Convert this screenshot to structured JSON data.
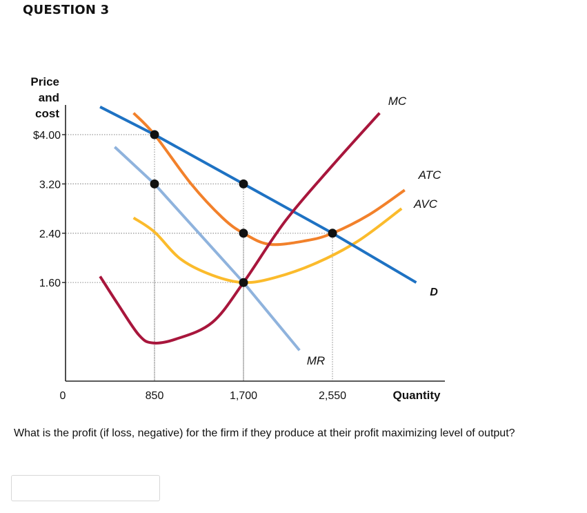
{
  "question": {
    "title": "QUESTION 3",
    "prompt": "What is the profit (if loss, negative) for the firm if they produce at their profit maximizing level of output?",
    "answer_value": "",
    "answer_placeholder": ""
  },
  "chart_data": {
    "type": "line",
    "ylabel_lines": [
      "Price",
      "and",
      "cost"
    ],
    "xlabel": "Quantity",
    "y_ticks": [
      {
        "value": 4.0,
        "label": "$4.00"
      },
      {
        "value": 3.2,
        "label": "3.20"
      },
      {
        "value": 2.4,
        "label": "2.40"
      },
      {
        "value": 1.6,
        "label": "1.60"
      }
    ],
    "x_ticks": [
      {
        "value": 0,
        "label": "0"
      },
      {
        "value": 850,
        "label": "850"
      },
      {
        "value": 1700,
        "label": "1,700"
      },
      {
        "value": 2550,
        "label": "2,550"
      }
    ],
    "xlim": [
      0,
      3500
    ],
    "ylim": [
      0,
      4.6
    ],
    "series": [
      {
        "name": "D",
        "color": "#1e72c3",
        "points": [
          [
            330,
            4.45
          ],
          [
            850,
            4.0
          ],
          [
            1700,
            3.2
          ],
          [
            2550,
            2.4
          ],
          [
            3350,
            1.6
          ]
        ]
      },
      {
        "name": "MR",
        "color": "#8fb3dd",
        "points": [
          [
            470,
            3.8
          ],
          [
            850,
            3.2
          ],
          [
            1700,
            1.6
          ],
          [
            2235,
            0.5
          ]
        ]
      },
      {
        "name": "MC",
        "color": "#a8163c",
        "points": [
          [
            330,
            1.7
          ],
          [
            500,
            1.25
          ],
          [
            700,
            0.75
          ],
          [
            830,
            0.62
          ],
          [
            1050,
            0.68
          ],
          [
            1400,
            0.95
          ],
          [
            1700,
            1.6
          ],
          [
            2100,
            2.6
          ],
          [
            2550,
            3.5
          ],
          [
            3000,
            4.35
          ]
        ]
      },
      {
        "name": "ATC",
        "color": "#f2812b",
        "points": [
          [
            650,
            4.35
          ],
          [
            850,
            4.0
          ],
          [
            1200,
            3.2
          ],
          [
            1500,
            2.65
          ],
          [
            1700,
            2.4
          ],
          [
            1950,
            2.22
          ],
          [
            2300,
            2.28
          ],
          [
            2550,
            2.4
          ],
          [
            2900,
            2.7
          ],
          [
            3240,
            3.1
          ]
        ]
      },
      {
        "name": "AVC",
        "color": "#fbbb2c",
        "points": [
          [
            650,
            2.65
          ],
          [
            850,
            2.42
          ],
          [
            1100,
            1.98
          ],
          [
            1400,
            1.72
          ],
          [
            1700,
            1.6
          ],
          [
            2000,
            1.68
          ],
          [
            2400,
            1.92
          ],
          [
            2800,
            2.28
          ],
          [
            3210,
            2.8
          ]
        ]
      }
    ],
    "guides": [
      {
        "x": 850,
        "y": 4.0
      },
      {
        "x": 850,
        "y": 3.2
      },
      {
        "x": 1700,
        "y": 3.2
      },
      {
        "x": 1700,
        "y": 2.4
      },
      {
        "x": 1700,
        "y": 1.6
      },
      {
        "x": 2550,
        "y": 2.4
      }
    ],
    "points": [
      {
        "x": 850,
        "y": 4.0
      },
      {
        "x": 850,
        "y": 3.2
      },
      {
        "x": 1700,
        "y": 3.2
      },
      {
        "x": 1700,
        "y": 2.4
      },
      {
        "x": 1700,
        "y": 1.6
      },
      {
        "x": 2550,
        "y": 2.4
      }
    ],
    "grid": false,
    "legend": "curve labels"
  }
}
